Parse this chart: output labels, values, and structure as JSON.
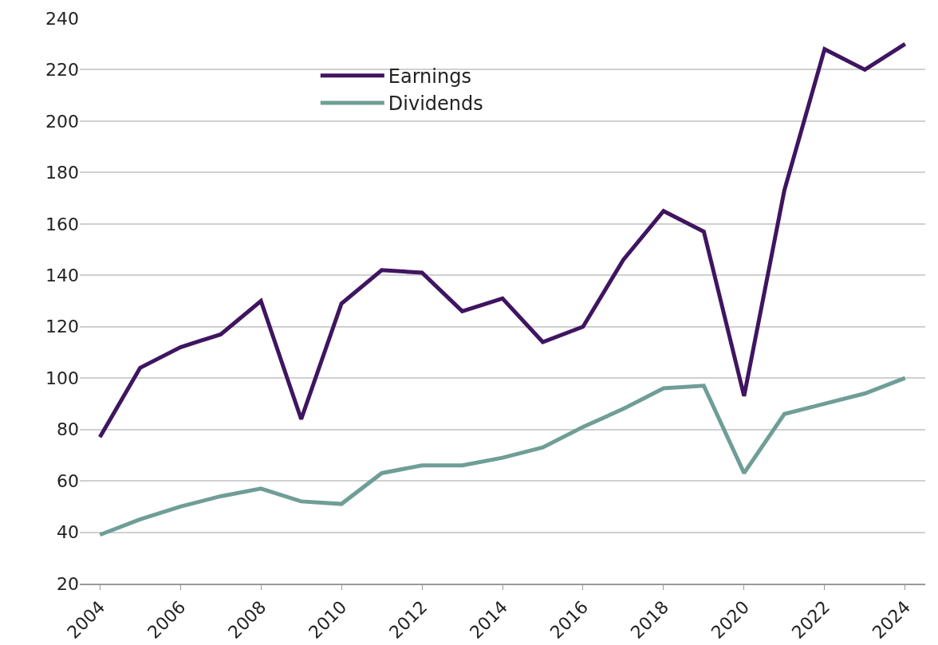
{
  "chart_data": {
    "type": "line",
    "categories": [
      "2004",
      null,
      "2006",
      null,
      "2008",
      null,
      "2010",
      null,
      "2012",
      null,
      "2014",
      null,
      "2016",
      null,
      "2018",
      null,
      "2020",
      null,
      "2022",
      null,
      "2024"
    ],
    "series": [
      {
        "name": "Earnings",
        "color": "#3f1560",
        "values": [
          77,
          104,
          112,
          117,
          130,
          84,
          129,
          142,
          141,
          126,
          131,
          114,
          120,
          146,
          165,
          157,
          93,
          173,
          228,
          220,
          230
        ]
      },
      {
        "name": "Dividends",
        "color": "#6f9e96",
        "values": [
          39,
          45,
          50,
          54,
          57,
          52,
          51,
          63,
          66,
          66,
          69,
          73,
          81,
          88,
          96,
          97,
          63,
          86,
          90,
          94,
          100
        ]
      }
    ],
    "ylim": [
      20,
      240
    ],
    "yticks": [
      20,
      40,
      60,
      80,
      100,
      120,
      140,
      160,
      180,
      200,
      220,
      240
    ],
    "grid": "y",
    "legend": "top left",
    "marker": "none",
    "line_style": "solid"
  }
}
